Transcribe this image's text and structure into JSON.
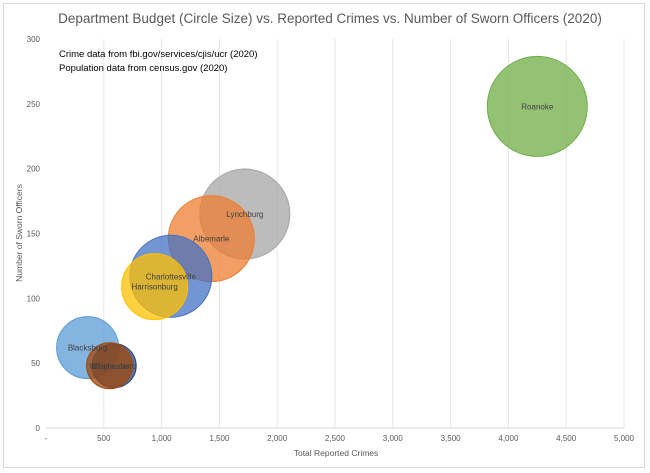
{
  "chart_data": {
    "type": "bubble",
    "title": "Department Budget (Circle Size) vs. Reported Crimes vs. Number of Sworn Officers (2020)",
    "xlabel": "Total Reported Crimes",
    "ylabel": "Number of Sworn Officers",
    "xlim": [
      0,
      5000
    ],
    "ylim": [
      0,
      300
    ],
    "xticks": [
      0,
      500,
      1000,
      1500,
      2000,
      2500,
      3000,
      3500,
      4000,
      4500,
      5000
    ],
    "xtick_labels": [
      "-",
      "500",
      "1,000",
      "1,500",
      "2,000",
      "2,500",
      "3,000",
      "3,500",
      "4,000",
      "4,500",
      "5,000"
    ],
    "yticks": [
      0,
      50,
      100,
      150,
      200,
      250,
      300
    ],
    "ytick_labels": [
      "0",
      "50",
      "100",
      "150",
      "200",
      "250",
      "300"
    ],
    "grid": "vertical",
    "annotations": [
      "Crime data from fbi.gov/services/cjis/ucr (2020)",
      "Population data from census.gov (2020)"
    ],
    "series": [
      {
        "name": "Roanoke",
        "x": 4250,
        "y": 248,
        "size": 50,
        "color": "#70ad47"
      },
      {
        "name": "Lynchburg",
        "x": 1720,
        "y": 165,
        "size": 45,
        "color": "#a5a5a5"
      },
      {
        "name": "Albemarle",
        "x": 1430,
        "y": 146,
        "size": 43,
        "color": "#ed7d31"
      },
      {
        "name": "Charlottesville",
        "x": 1080,
        "y": 117,
        "size": 41,
        "color": "#4472c4"
      },
      {
        "name": "Harrisonburg",
        "x": 940,
        "y": 109,
        "size": 33,
        "color": "#ffc000"
      },
      {
        "name": "Blacksburg",
        "x": 360,
        "y": 62,
        "size": 31,
        "color": "#5b9bd5"
      },
      {
        "name": "Waynesboro",
        "x": 590,
        "y": 48,
        "size": 22,
        "color": "#264478"
      },
      {
        "name": "Winchester",
        "x": 550,
        "y": 48,
        "size": 23,
        "color": "#9e480e"
      }
    ]
  }
}
